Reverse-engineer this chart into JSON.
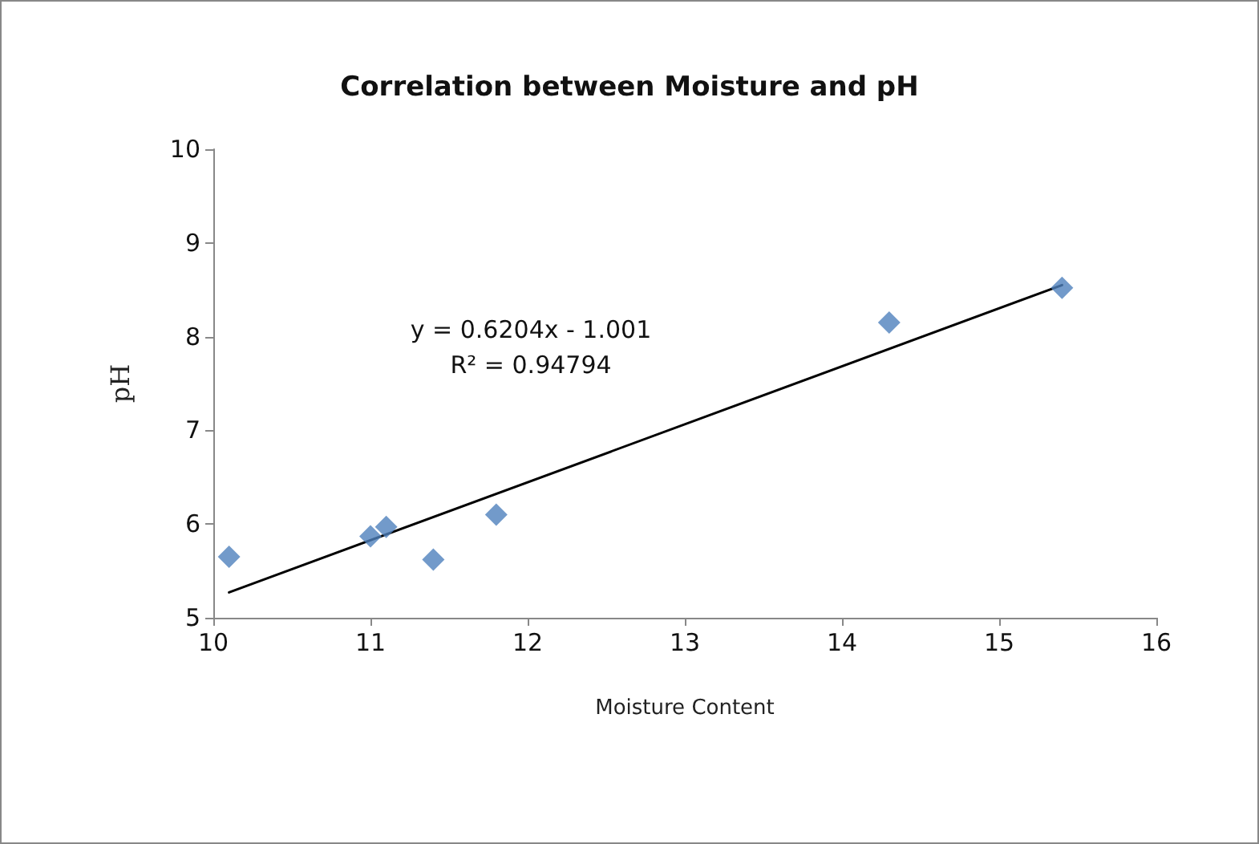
{
  "chart_data": {
    "type": "scatter",
    "title": "Correlation between Moisture and pH",
    "xlabel": "Moisture Content",
    "ylabel": "pH",
    "annotations": [
      "y = 0.6204x - 1.001",
      "R² = 0.94794"
    ],
    "series": [
      {
        "color": "#4f81bd",
        "marker": "diamond",
        "x": [
          10.1,
          11.0,
          11.1,
          11.4,
          11.8,
          14.3,
          15.4
        ],
        "values": [
          5.65,
          5.87,
          5.97,
          5.62,
          6.1,
          8.15,
          8.52
        ]
      },
      {
        "type": "line",
        "color": "#000000",
        "marker": "none",
        "line_style": "solid",
        "x": [
          10.1,
          15.4
        ],
        "values": [
          5.27,
          8.55
        ]
      }
    ],
    "xlim": [
      10,
      16
    ],
    "xticks": [
      10,
      11,
      12,
      13,
      14,
      15,
      16
    ],
    "ylim": [
      5,
      10
    ],
    "yticks": [
      5,
      6,
      7,
      8,
      9,
      10
    ],
    "grid": false
  }
}
